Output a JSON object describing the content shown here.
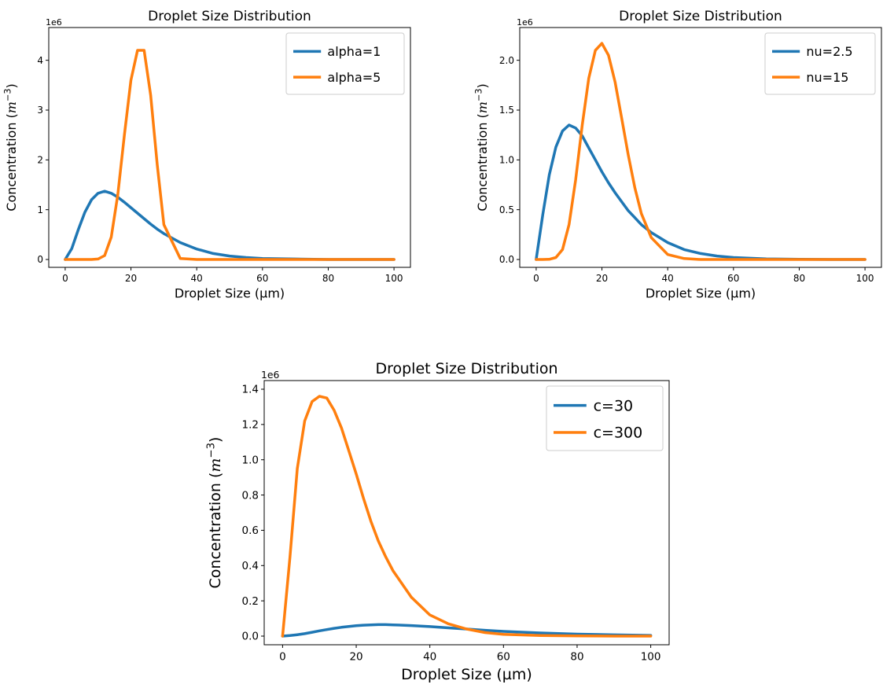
{
  "chart_data": [
    {
      "type": "line",
      "title": "Droplet Size Distribution",
      "xlabel": "Droplet Size (µm)",
      "ylabel_text": "Concentration (",
      "ylabel_unit": "m",
      "ylabel_exp": "−3",
      "ylabel_close": ")",
      "offset_label": "1e6",
      "xlim": [
        0,
        100
      ],
      "ylim": [
        0,
        4.5
      ],
      "xticks": [
        "0",
        "20",
        "40",
        "60",
        "80",
        "100"
      ],
      "yticks": [
        "0",
        "1",
        "2",
        "3",
        "4"
      ],
      "legend_position": "top-right",
      "x": [
        0,
        2,
        4,
        6,
        8,
        10,
        12,
        14,
        16,
        18,
        20,
        22,
        24,
        26,
        28,
        30,
        35,
        40,
        45,
        50,
        55,
        60,
        70,
        80,
        90,
        100
      ],
      "series": [
        {
          "name": "alpha=1",
          "color": "#1f77b4",
          "values": [
            0,
            0.22,
            0.6,
            0.95,
            1.2,
            1.33,
            1.37,
            1.33,
            1.25,
            1.15,
            1.04,
            0.93,
            0.82,
            0.71,
            0.61,
            0.52,
            0.34,
            0.21,
            0.12,
            0.07,
            0.04,
            0.02,
            0.01,
            0,
            0,
            0
          ]
        },
        {
          "name": "alpha=5",
          "color": "#ff7f0e",
          "values": [
            0,
            0,
            0,
            0,
            0,
            0.01,
            0.08,
            0.45,
            1.3,
            2.5,
            3.6,
            4.2,
            4.2,
            3.3,
            1.9,
            0.7,
            0.02,
            0,
            0,
            0,
            0,
            0,
            0,
            0,
            0,
            0
          ]
        }
      ]
    },
    {
      "type": "line",
      "title": "Droplet Size Distribution",
      "xlabel": "Droplet Size (µm)",
      "ylabel_text": "Concentration (",
      "ylabel_unit": "m",
      "ylabel_exp": "−3",
      "ylabel_close": ")",
      "offset_label": "1e6",
      "xlim": [
        0,
        100
      ],
      "ylim": [
        0,
        2.25
      ],
      "xticks": [
        "0",
        "20",
        "40",
        "60",
        "80",
        "100"
      ],
      "yticks": [
        "0.0",
        "0.5",
        "1.0",
        "1.5",
        "2.0"
      ],
      "legend_position": "top-right",
      "x": [
        0,
        2,
        4,
        6,
        8,
        10,
        12,
        14,
        16,
        18,
        20,
        22,
        24,
        26,
        28,
        30,
        32,
        35,
        40,
        45,
        50,
        55,
        60,
        70,
        80,
        90,
        100
      ],
      "series": [
        {
          "name": "nu=2.5",
          "color": "#1f77b4",
          "values": [
            0,
            0.45,
            0.85,
            1.13,
            1.29,
            1.35,
            1.32,
            1.24,
            1.12,
            1.0,
            0.88,
            0.77,
            0.67,
            0.58,
            0.49,
            0.42,
            0.35,
            0.27,
            0.17,
            0.1,
            0.06,
            0.035,
            0.02,
            0.006,
            0.002,
            0,
            0
          ]
        },
        {
          "name": "nu=15",
          "color": "#ff7f0e",
          "values": [
            0,
            0,
            0.002,
            0.02,
            0.1,
            0.35,
            0.8,
            1.35,
            1.82,
            2.1,
            2.17,
            2.05,
            1.78,
            1.42,
            1.05,
            0.72,
            0.46,
            0.22,
            0.05,
            0.01,
            0,
            0,
            0,
            0,
            0,
            0,
            0
          ]
        }
      ]
    },
    {
      "type": "line",
      "title": "Droplet Size Distribution",
      "xlabel": "Droplet Size (µm)",
      "ylabel_text": "Concentration (",
      "ylabel_unit": "m",
      "ylabel_exp": "−3",
      "ylabel_close": ")",
      "offset_label": "1e6",
      "xlim": [
        0,
        100
      ],
      "ylim": [
        0,
        1.4
      ],
      "xticks": [
        "0",
        "20",
        "40",
        "60",
        "80",
        "100"
      ],
      "yticks": [
        "0.0",
        "0.2",
        "0.4",
        "0.6",
        "0.8",
        "1.0",
        "1.2",
        "1.4"
      ],
      "legend_position": "top-right",
      "x": [
        0,
        2,
        4,
        6,
        8,
        10,
        12,
        14,
        16,
        18,
        20,
        22,
        24,
        26,
        28,
        30,
        35,
        40,
        45,
        50,
        55,
        60,
        70,
        80,
        90,
        100
      ],
      "series": [
        {
          "name": "c=30",
          "color": "#1f77b4",
          "values": [
            0,
            0.003,
            0.008,
            0.014,
            0.022,
            0.03,
            0.037,
            0.044,
            0.05,
            0.055,
            0.059,
            0.062,
            0.064,
            0.065,
            0.065,
            0.064,
            0.06,
            0.054,
            0.047,
            0.04,
            0.033,
            0.027,
            0.018,
            0.011,
            0.007,
            0.004
          ]
        },
        {
          "name": "c=300",
          "color": "#ff7f0e",
          "values": [
            0,
            0.45,
            0.95,
            1.22,
            1.33,
            1.36,
            1.35,
            1.28,
            1.18,
            1.05,
            0.92,
            0.78,
            0.65,
            0.54,
            0.45,
            0.37,
            0.22,
            0.12,
            0.07,
            0.04,
            0.02,
            0.01,
            0.003,
            0.001,
            0,
            0
          ]
        }
      ]
    }
  ]
}
